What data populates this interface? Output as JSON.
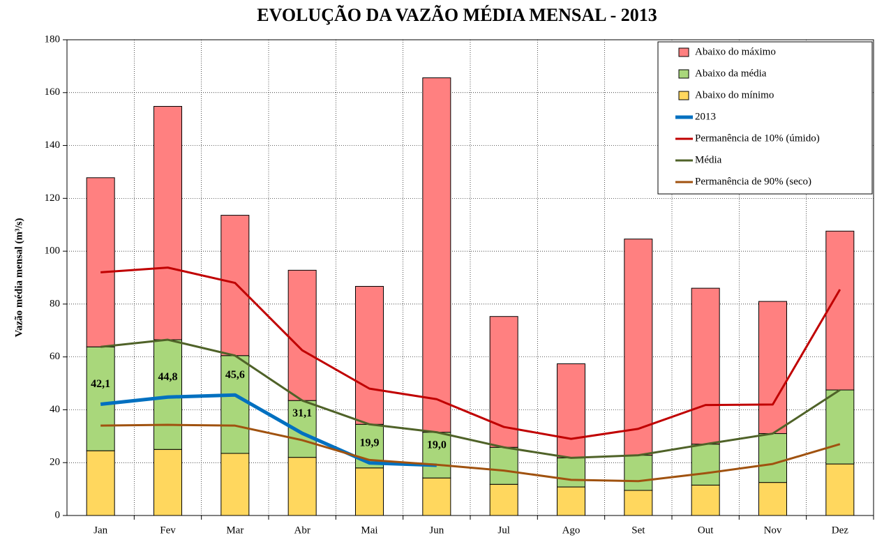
{
  "chart_data": {
    "type": "bar",
    "title": "EVOLUÇÃO DA VAZÃO MÉDIA MENSAL - 2013",
    "y_label": "Vazão média mensal (m³/s)",
    "categories": [
      "Jan",
      "Fev",
      "Mar",
      "Abr",
      "Mai",
      "Jun",
      "Jul",
      "Ago",
      "Set",
      "Out",
      "Nov",
      "Dez"
    ],
    "ylim": [
      0,
      180
    ],
    "yticks": [
      0,
      20,
      40,
      60,
      80,
      100,
      120,
      140,
      160,
      180
    ],
    "grid": true,
    "legend": "top-right",
    "series": [
      {
        "name": "Abaixo do máximo",
        "type": "bar",
        "color": "#ff8080",
        "values": [
          64.0,
          88.3,
          53.1,
          49.3,
          52.2,
          134.1,
          49.5,
          35.6,
          81.8,
          59.0,
          50.0,
          60.1
        ]
      },
      {
        "name": "Abaixo da média",
        "type": "bar",
        "color": "#a9d77b",
        "values": [
          39.3,
          41.5,
          37.0,
          21.5,
          16.5,
          17.3,
          14.0,
          11.0,
          13.3,
          15.5,
          18.5,
          28.0
        ]
      },
      {
        "name": "Abaixo do mínimo",
        "type": "bar",
        "color": "#ffd75e",
        "values": [
          24.5,
          25.0,
          23.5,
          22.0,
          18.0,
          14.2,
          11.8,
          10.8,
          9.5,
          11.5,
          12.5,
          19.5
        ]
      },
      {
        "name": "2013",
        "type": "line",
        "color": "#0070c0",
        "width": 5,
        "values": [
          42.1,
          44.8,
          45.6,
          31.1,
          19.9,
          19.0,
          null,
          null,
          null,
          null,
          null,
          null
        ],
        "value_labels": [
          "42,1",
          "44,8",
          "45,6",
          "31,1",
          "19,9",
          "19,0",
          null,
          null,
          null,
          null,
          null,
          null
        ]
      },
      {
        "name": "Permanência de 10% (úmido)",
        "type": "line",
        "color": "#c00000",
        "width": 3,
        "values": [
          92.0,
          93.8,
          88.0,
          62.5,
          48.0,
          44.0,
          33.5,
          29.0,
          32.8,
          41.8,
          42.0,
          85.5
        ]
      },
      {
        "name": "Média",
        "type": "line",
        "color": "#4f6228",
        "width": 3,
        "values": [
          63.8,
          66.5,
          60.5,
          43.5,
          34.5,
          31.5,
          25.8,
          21.8,
          22.8,
          27.0,
          31.0,
          47.5
        ]
      },
      {
        "name": "Permanência de 90% (seco)",
        "type": "line",
        "color": "#a0520f",
        "width": 3,
        "values": [
          34.0,
          34.3,
          34.0,
          28.5,
          21.0,
          19.2,
          17.0,
          13.5,
          13.0,
          16.0,
          19.5,
          27.0
        ]
      }
    ]
  }
}
